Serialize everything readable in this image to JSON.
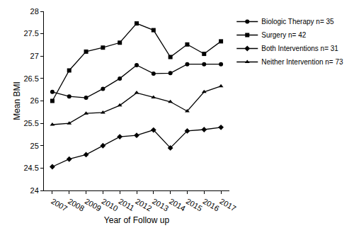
{
  "chart_data": {
    "type": "line",
    "x_label": "Year of Follow up",
    "y_label": "Mean BMI",
    "categories": [
      "2007",
      "2008",
      "2009",
      "2010",
      "2011",
      "2012",
      "2013",
      "2014",
      "2015",
      "2016",
      "2017"
    ],
    "series": [
      {
        "name": "Biologic Therapy n= 35",
        "color": "#000000",
        "marker": "circle",
        "line_style": "solid",
        "values": [
          26.2,
          26.1,
          26.07,
          26.27,
          26.5,
          26.8,
          26.61,
          26.62,
          26.82,
          26.82,
          26.82
        ]
      },
      {
        "name": "Surgery n= 42",
        "color": "#000000",
        "marker": "square",
        "line_style": "solid",
        "values": [
          26.0,
          26.68,
          27.1,
          27.19,
          27.3,
          27.73,
          27.58,
          26.98,
          27.26,
          27.05,
          27.33
        ]
      },
      {
        "name": "Both Interventions n= 31",
        "color": "#000000",
        "marker": "diamond",
        "line_style": "solid",
        "values": [
          24.53,
          24.7,
          24.8,
          25.0,
          25.2,
          25.23,
          25.35,
          24.95,
          25.33,
          25.36,
          25.41
        ]
      },
      {
        "name": "Neither Intervention n= 73",
        "color": "#000000",
        "marker": "triangle-up",
        "line_style": "solid",
        "values": [
          25.47,
          25.5,
          25.72,
          25.74,
          25.9,
          26.18,
          26.08,
          25.98,
          25.77,
          26.2,
          26.33
        ]
      }
    ],
    "ylim": [
      24,
      28
    ],
    "yticks": [
      24,
      24.5,
      25,
      25.5,
      26,
      26.5,
      27,
      27.5,
      28
    ],
    "grid": false,
    "legend": "top right"
  }
}
